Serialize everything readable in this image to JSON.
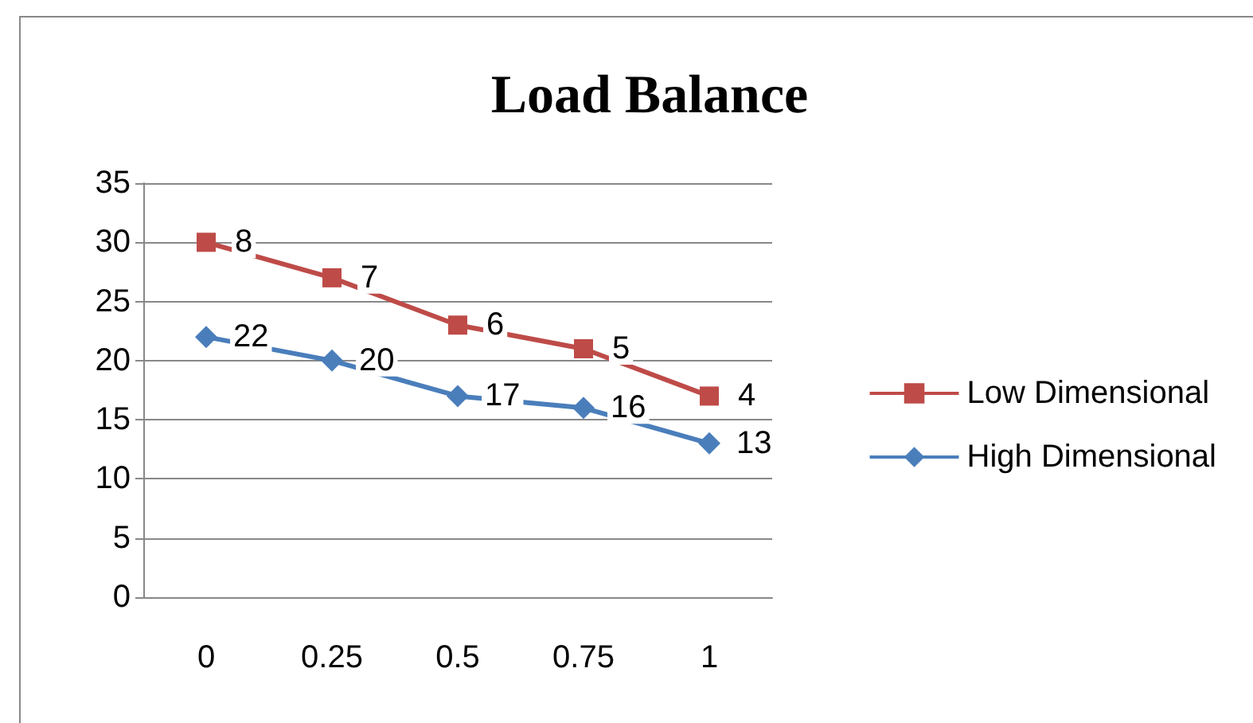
{
  "chart_data": {
    "type": "line",
    "title": "Load Balance",
    "categories": [
      "0",
      "0.25",
      "0.5",
      "0.75",
      "1"
    ],
    "series": [
      {
        "name": "Low Dimensional",
        "color": "#be4b48",
        "marker": "square",
        "values": [
          30,
          27,
          23,
          21,
          17
        ]
      },
      {
        "name": "High Dimensional",
        "color": "#4a7ebb",
        "marker": "diamond",
        "values": [
          22,
          20,
          17,
          16,
          13
        ],
        "value_labels": [
          "22",
          "20",
          "17",
          "16",
          "13"
        ]
      }
    ],
    "annotations": [
      {
        "text": "8",
        "x": "0",
        "y": 30
      },
      {
        "text": "7",
        "x": "0.25",
        "y": 27
      },
      {
        "text": "6",
        "x": "0.5",
        "y": 23
      },
      {
        "text": "5",
        "x": "0.75",
        "y": 21
      },
      {
        "text": "4",
        "x": "1",
        "y": 17
      }
    ],
    "ylim": [
      0,
      35
    ],
    "yticks": [
      0,
      5,
      10,
      15,
      20,
      25,
      30,
      35
    ],
    "grid": "y",
    "legend": "right"
  }
}
